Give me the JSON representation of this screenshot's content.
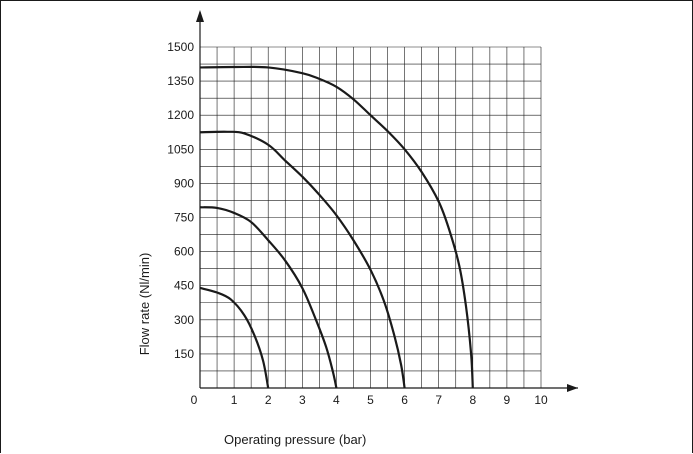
{
  "chart_data": {
    "type": "line",
    "xlabel": "Operating pressure (bar)",
    "ylabel": "Flow rate (Nl/min)",
    "xlim": [
      0,
      10
    ],
    "ylim": [
      0,
      1500
    ],
    "x_ticks": [
      0,
      1,
      2,
      3,
      4,
      5,
      6,
      7,
      8,
      9,
      10
    ],
    "y_ticks": [
      150,
      300,
      450,
      600,
      750,
      900,
      1050,
      1200,
      1350,
      1500
    ],
    "x_ticks_text": [
      "0",
      "1",
      "2",
      "3",
      "4",
      "5",
      "6",
      "7",
      "8",
      "9",
      "10"
    ],
    "y_ticks_text": [
      "150",
      "300",
      "450",
      "600",
      "750",
      "900",
      "1050",
      "1200",
      "1350",
      "1500"
    ],
    "grid": true,
    "x_minor_step": 0.5,
    "y_minor_step": 75,
    "line_color": "#1a1a1a",
    "series": [
      {
        "points": [
          [
            0,
            440
          ],
          [
            0.5,
            420
          ],
          [
            0.9,
            390
          ],
          [
            1.3,
            320
          ],
          [
            1.6,
            230
          ],
          [
            1.85,
            120
          ],
          [
            2,
            0
          ]
        ]
      },
      {
        "points": [
          [
            0,
            795
          ],
          [
            0.5,
            792
          ],
          [
            1,
            770
          ],
          [
            1.5,
            730
          ],
          [
            2,
            650
          ],
          [
            2.5,
            560
          ],
          [
            3,
            440
          ],
          [
            3.4,
            300
          ],
          [
            3.7,
            180
          ],
          [
            3.9,
            70
          ],
          [
            4,
            0
          ]
        ]
      },
      {
        "points": [
          [
            0,
            1125
          ],
          [
            0.8,
            1127
          ],
          [
            1.3,
            1120
          ],
          [
            2,
            1070
          ],
          [
            2.5,
            1000
          ],
          [
            3,
            930
          ],
          [
            3.5,
            850
          ],
          [
            4,
            760
          ],
          [
            4.5,
            650
          ],
          [
            5,
            520
          ],
          [
            5.4,
            380
          ],
          [
            5.7,
            230
          ],
          [
            5.9,
            100
          ],
          [
            6,
            0
          ]
        ]
      },
      {
        "points": [
          [
            0,
            1410
          ],
          [
            1,
            1412
          ],
          [
            2,
            1410
          ],
          [
            3,
            1385
          ],
          [
            3.5,
            1360
          ],
          [
            4,
            1325
          ],
          [
            4.5,
            1270
          ],
          [
            5,
            1200
          ],
          [
            5.5,
            1130
          ],
          [
            6,
            1050
          ],
          [
            6.5,
            950
          ],
          [
            7,
            820
          ],
          [
            7.3,
            700
          ],
          [
            7.6,
            540
          ],
          [
            7.8,
            360
          ],
          [
            7.95,
            150
          ],
          [
            8,
            0
          ]
        ]
      }
    ]
  }
}
